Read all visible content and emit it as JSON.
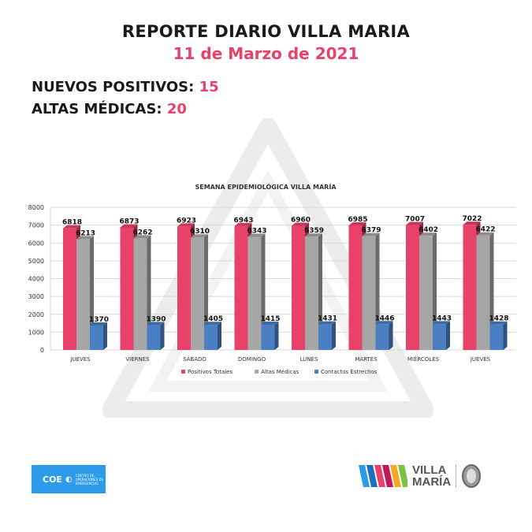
{
  "header": {
    "title": "REPORTE DIARIO VILLA MARIA",
    "date": "11 de Marzo de 2021"
  },
  "stats": [
    {
      "label": "NUEVOS POSITIVOS:",
      "value": "15"
    },
    {
      "label": "ALTAS MÉDICAS:",
      "value": "20"
    }
  ],
  "chart_data": {
    "type": "bar",
    "title": "SEMANA EPIDEMIOLÓGICA VILLA MARÍA",
    "categories": [
      "JUEVES",
      "VIERNES",
      "SÁBADO",
      "DOMINGO",
      "LUNES",
      "MARTES",
      "MIÉRCOLES",
      "JUEVES"
    ],
    "series": [
      {
        "name": "Positivos Totales",
        "color": "#e8426a",
        "values": [
          6818,
          6873,
          6923,
          6943,
          6960,
          6985,
          7007,
          7022
        ]
      },
      {
        "name": "Altas Médicas",
        "color": "#a6a6a6",
        "values": [
          6213,
          6262,
          6310,
          6343,
          6359,
          6379,
          6402,
          6422
        ]
      },
      {
        "name": "Contactos Estrechos",
        "color": "#4a7fc1",
        "values": [
          1370,
          1390,
          1405,
          1415,
          1431,
          1446,
          1443,
          1428
        ]
      }
    ],
    "ylim": [
      0,
      8000
    ],
    "yticks": [
      0,
      1000,
      2000,
      3000,
      4000,
      5000,
      6000,
      7000,
      8000
    ],
    "grid": true,
    "legend": "bottom",
    "style": "3d-column"
  },
  "logos": {
    "coe": {
      "text": "COE",
      "subtitle": "CENTRO DE OPERACIONES DE EMERGENCIAS",
      "color": "#2d9bea"
    },
    "villa_maria": {
      "line1": "VILLA",
      "line2": "MARÍA",
      "stripe_colors": [
        "#2d9bea",
        "#1e6fbf",
        "#e8426a",
        "#c2185b",
        "#f5a623",
        "#7cc242"
      ]
    }
  }
}
